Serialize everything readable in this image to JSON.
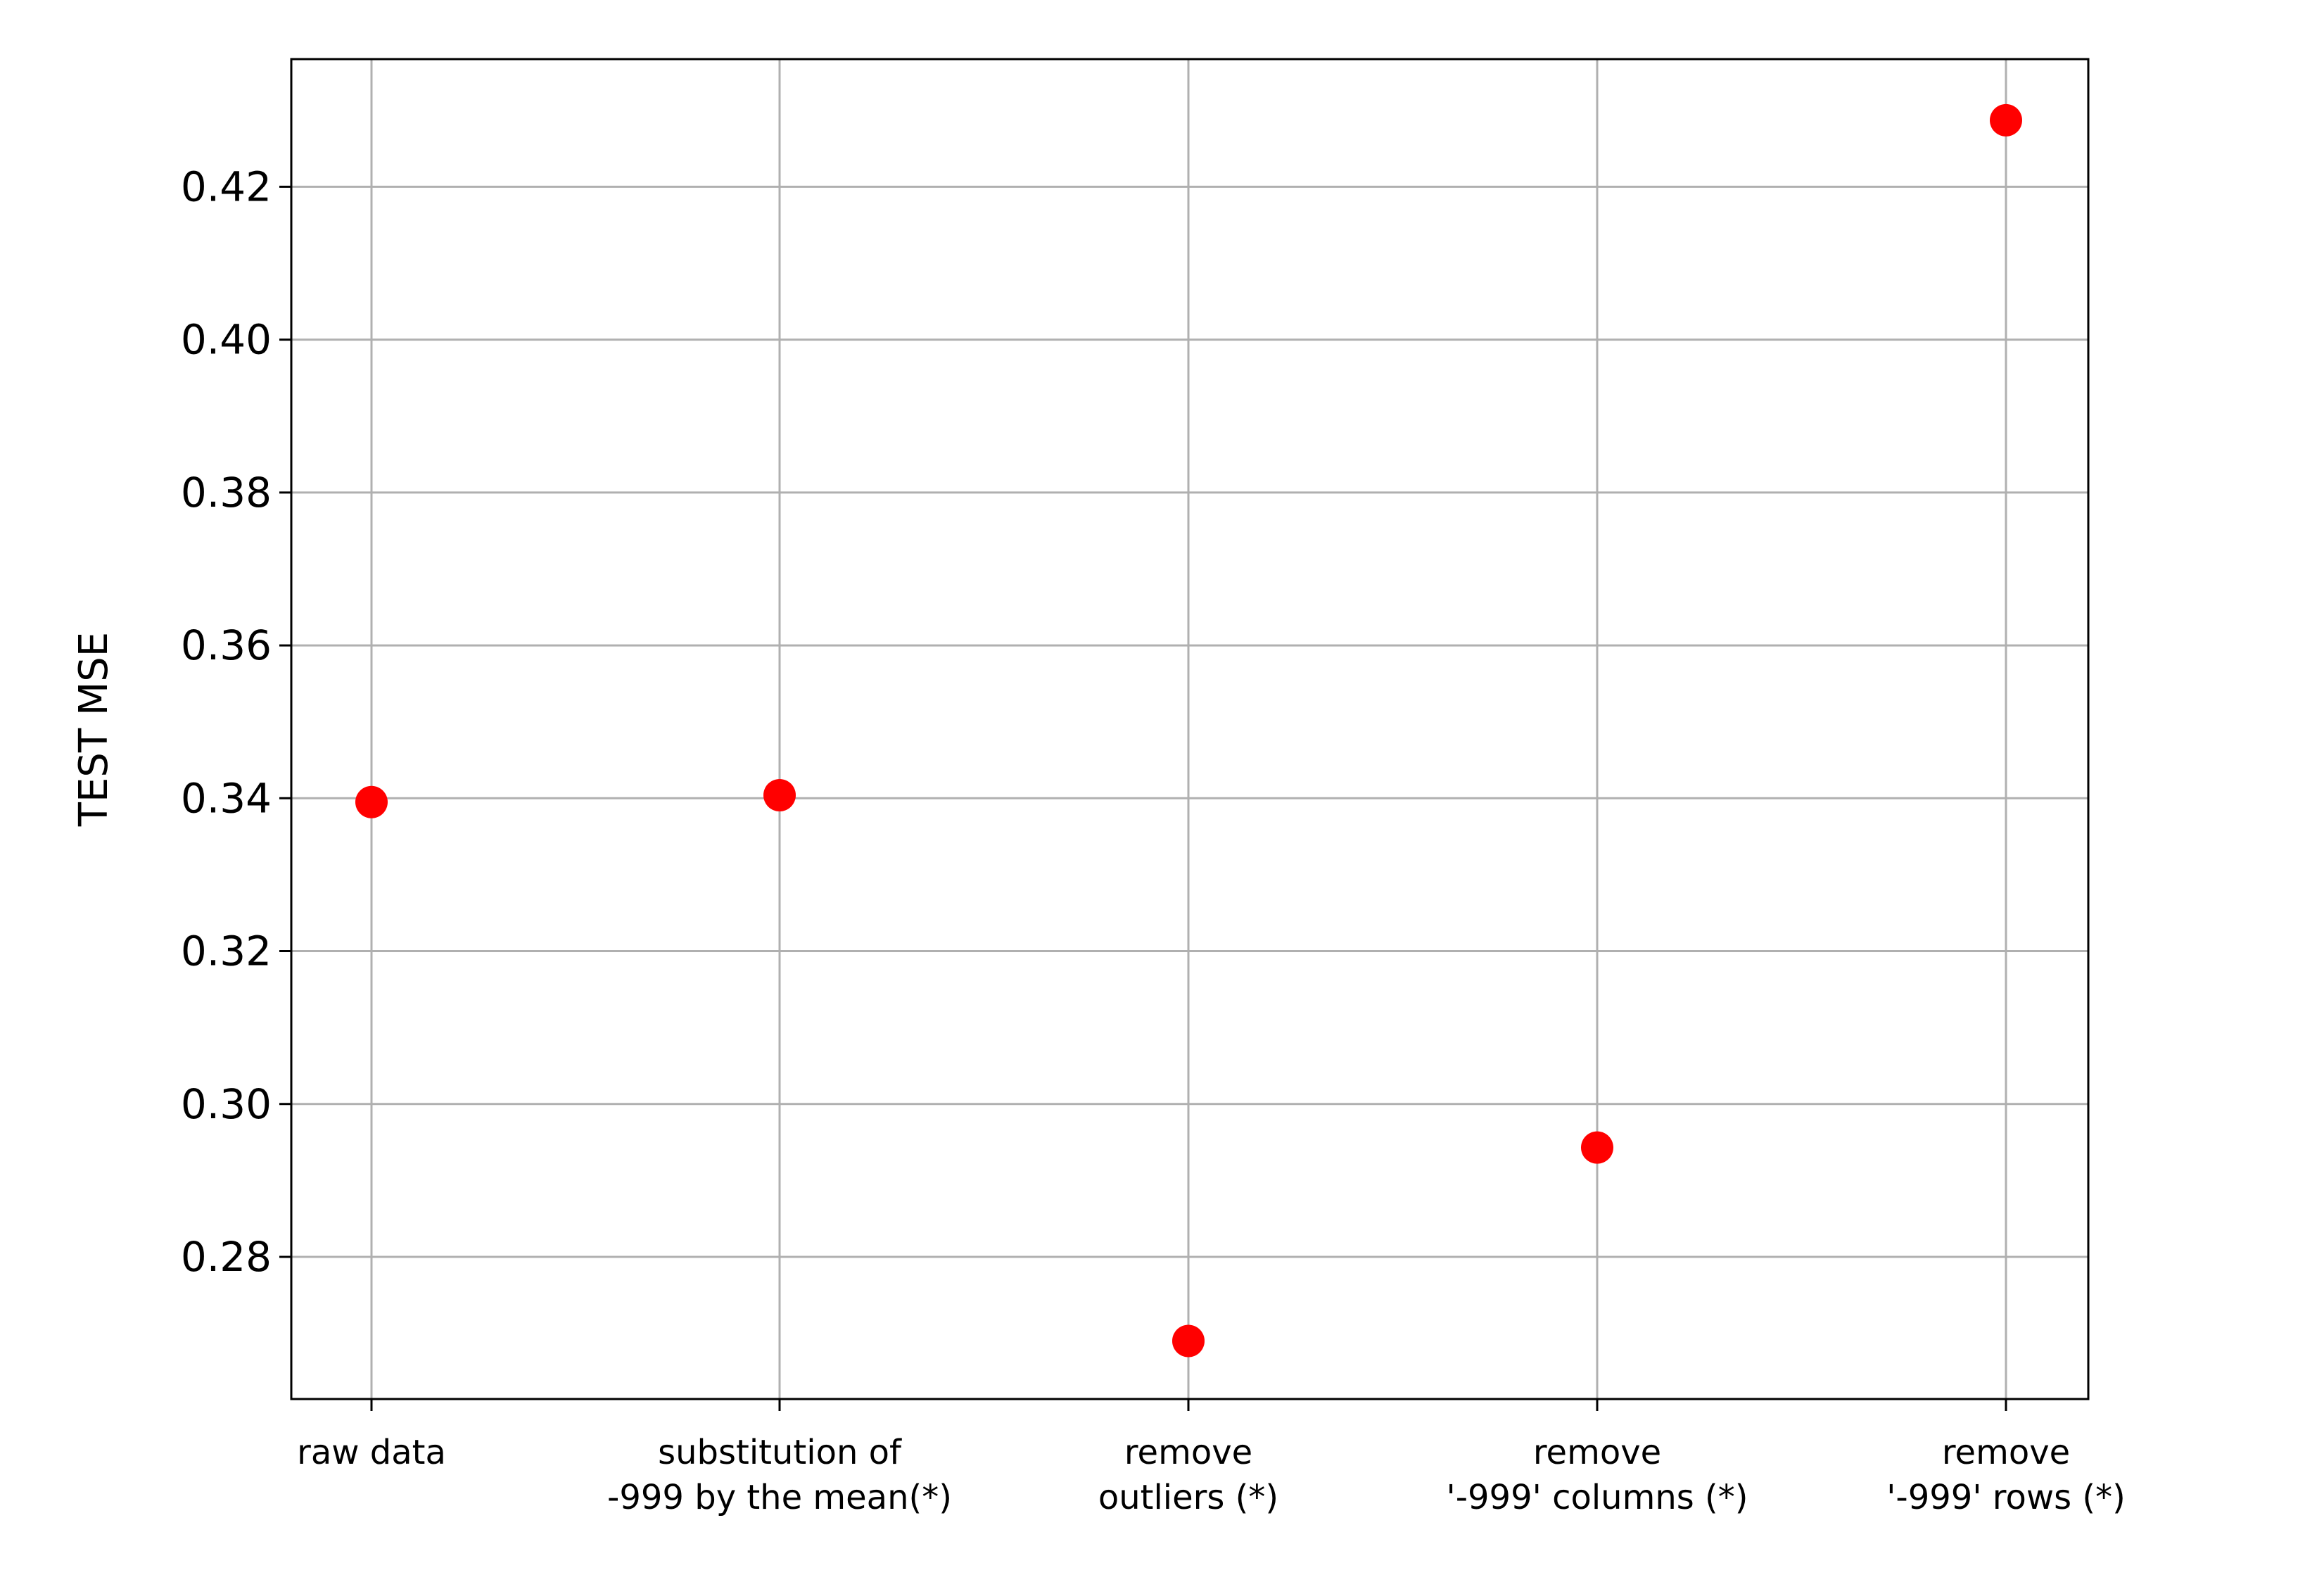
{
  "chart_data": {
    "type": "scatter",
    "title": "",
    "xlabel": "",
    "ylabel": "TEST MSE",
    "categories": [
      [
        "raw data"
      ],
      [
        "substitution of",
        "-999 by the mean(*)"
      ],
      [
        "remove",
        "outliers (*)"
      ],
      [
        "remove",
        "'-999' columns (*)"
      ],
      [
        "remove",
        "'-999' rows (*)"
      ]
    ],
    "values": [
      0.3395,
      0.3404,
      0.269,
      0.2943,
      0.4287
    ],
    "yticks": [
      "0.28",
      "0.30",
      "0.32",
      "0.34",
      "0.36",
      "0.38",
      "0.40",
      "0.42"
    ],
    "ylim": [
      0.2614,
      0.4367
    ],
    "grid": true,
    "marker_color": "#ff0000",
    "grid_color": "#b0b0b0"
  }
}
